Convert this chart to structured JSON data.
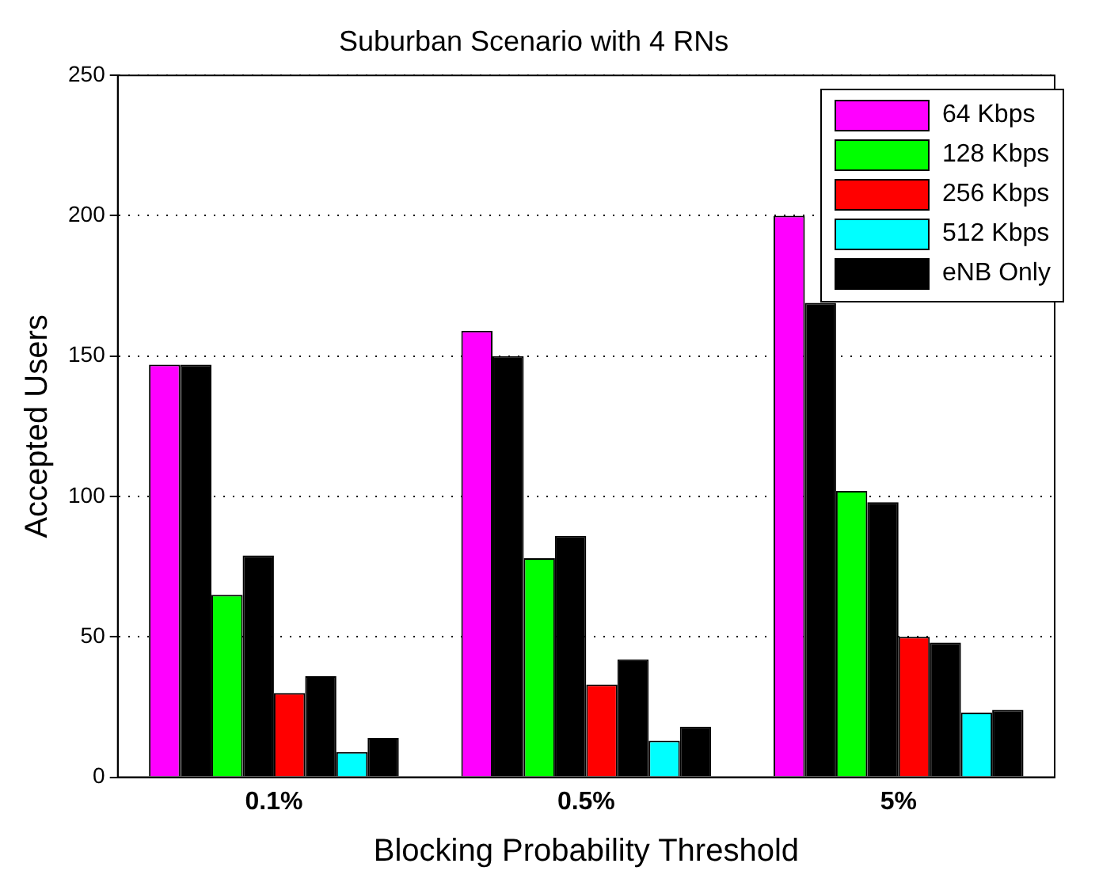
{
  "chart_data": {
    "type": "bar",
    "title": "Suburban Scenario with 4 RNs",
    "xlabel": "Blocking Probability Threshold",
    "ylabel": "Accepted Users",
    "categories": [
      "0.1%",
      "0.5%",
      "5%"
    ],
    "series": [
      {
        "name": "64 Kbps",
        "color": "#ff00ff",
        "values": [
          147,
          159,
          200
        ]
      },
      {
        "color": "#000000",
        "values": [
          147,
          150,
          169
        ]
      },
      {
        "name": "128 Kbps",
        "color": "#00ff00",
        "values": [
          65,
          78,
          102
        ]
      },
      {
        "color": "#000000",
        "values": [
          79,
          86,
          98
        ]
      },
      {
        "name": "256 Kbps",
        "color": "#ff0000",
        "values": [
          30,
          33,
          50
        ]
      },
      {
        "color": "#000000",
        "values": [
          36,
          42,
          48
        ]
      },
      {
        "name": "512 Kbps",
        "color": "#00ffff",
        "values": [
          9,
          13,
          23
        ]
      },
      {
        "name": "eNB Only",
        "color": "#000000",
        "values": [
          14,
          18,
          24
        ]
      }
    ],
    "ylim": [
      0,
      250
    ],
    "yticks": [
      0,
      50,
      100,
      150,
      200,
      250
    ],
    "grid": "y",
    "legend": "top right"
  }
}
